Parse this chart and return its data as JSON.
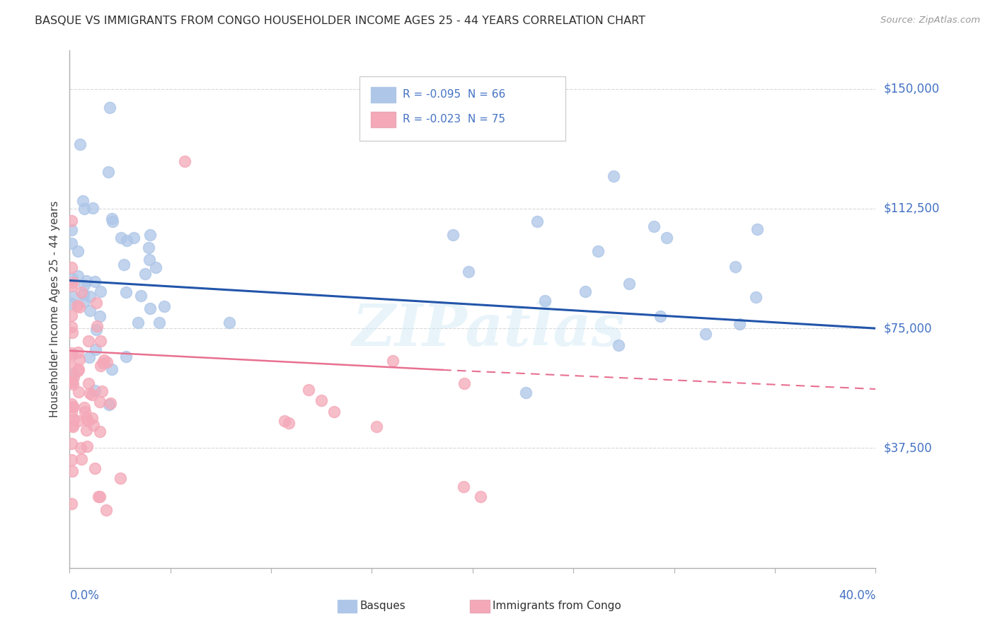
{
  "title": "BASQUE VS IMMIGRANTS FROM CONGO HOUSEHOLDER INCOME AGES 25 - 44 YEARS CORRELATION CHART",
  "source": "Source: ZipAtlas.com",
  "ylabel": "Householder Income Ages 25 - 44 years",
  "xlim": [
    0.0,
    0.4
  ],
  "ylim": [
    0,
    162000
  ],
  "xticks": [
    0.0,
    0.05,
    0.1,
    0.15,
    0.2,
    0.25,
    0.3,
    0.35,
    0.4
  ],
  "yticks": [
    0,
    37500,
    75000,
    112500,
    150000
  ],
  "yticklabels": [
    "",
    "$37,500",
    "$75,000",
    "$112,500",
    "$150,000"
  ],
  "basque_color": "#aec6e8",
  "congo_color": "#f4a8b8",
  "basque_line_color": "#2255aa",
  "congo_line_color": "#e87090",
  "watermark": "ZIPatlas",
  "background_color": "#ffffff",
  "grid_color": "#d8d8d8",
  "axis_color": "#b0b0b0",
  "title_color": "#303030",
  "ylabel_color": "#404040",
  "tick_color": "#4472c4",
  "legend_R1": "R = -0.095",
  "legend_N1": "N = 66",
  "legend_R2": "R = -0.023",
  "legend_N2": "N = 75",
  "bottom_label1": "Basques",
  "bottom_label2": "Immigrants from Congo"
}
